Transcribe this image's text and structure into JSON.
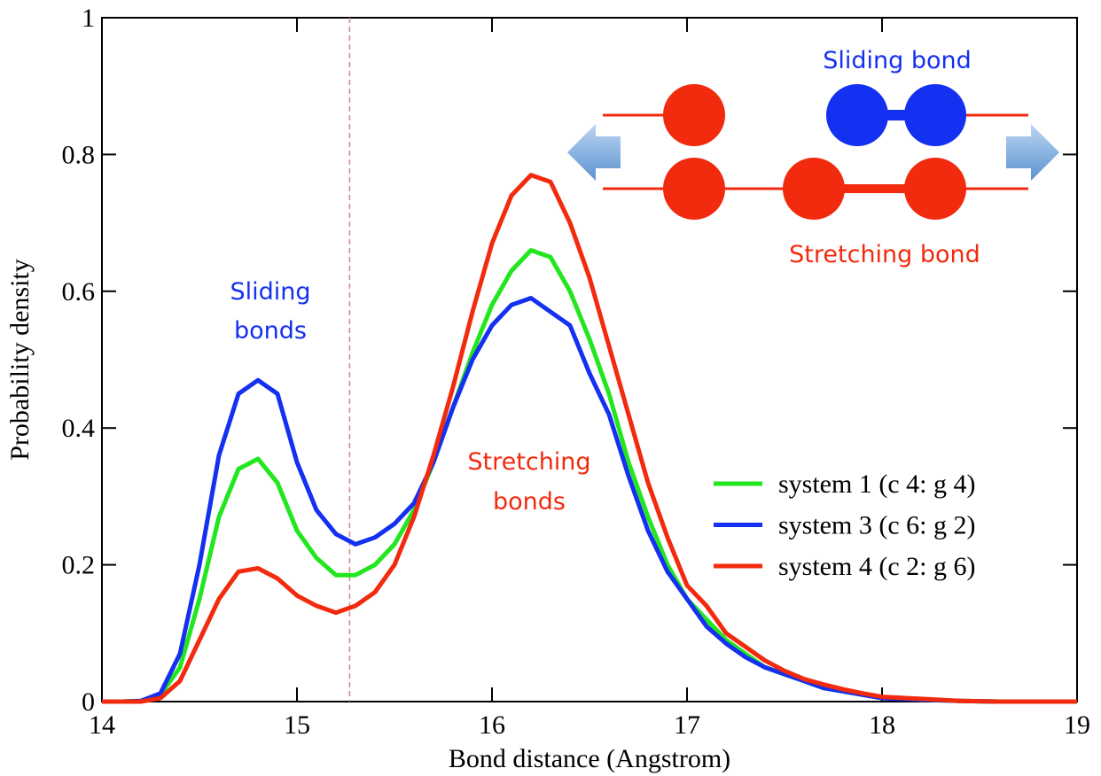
{
  "chart_data": {
    "type": "line",
    "xlabel": "Bond distance (Angstrom)",
    "ylabel": "Probability density",
    "x": [
      14.0,
      14.1,
      14.2,
      14.3,
      14.4,
      14.5,
      14.6,
      14.7,
      14.8,
      14.9,
      15.0,
      15.1,
      15.2,
      15.3,
      15.4,
      15.5,
      15.6,
      15.7,
      15.8,
      15.9,
      16.0,
      16.1,
      16.2,
      16.3,
      16.4,
      16.5,
      16.6,
      16.7,
      16.8,
      16.9,
      17.0,
      17.1,
      17.2,
      17.3,
      17.4,
      17.5,
      17.6,
      17.7,
      17.8,
      17.9,
      18.0,
      18.2,
      18.4,
      18.6,
      18.8,
      19.0
    ],
    "series": [
      {
        "name": "system 1 (c 4: g 4)",
        "color": "#22e61e",
        "values": [
          0,
          0,
          0.001,
          0.01,
          0.05,
          0.15,
          0.27,
          0.34,
          0.355,
          0.32,
          0.25,
          0.21,
          0.185,
          0.185,
          0.2,
          0.23,
          0.28,
          0.35,
          0.43,
          0.51,
          0.58,
          0.63,
          0.66,
          0.65,
          0.6,
          0.53,
          0.45,
          0.35,
          0.27,
          0.2,
          0.15,
          0.12,
          0.09,
          0.07,
          0.05,
          0.04,
          0.03,
          0.02,
          0.015,
          0.01,
          0.006,
          0.003,
          0.001,
          0,
          0,
          0
        ]
      },
      {
        "name": "system 3 (c 6: g 2)",
        "color": "#1430f0",
        "values": [
          0,
          0,
          0.001,
          0.012,
          0.07,
          0.2,
          0.36,
          0.45,
          0.47,
          0.45,
          0.35,
          0.28,
          0.245,
          0.23,
          0.24,
          0.26,
          0.29,
          0.35,
          0.43,
          0.5,
          0.55,
          0.58,
          0.59,
          0.57,
          0.55,
          0.48,
          0.42,
          0.33,
          0.25,
          0.19,
          0.15,
          0.11,
          0.085,
          0.065,
          0.05,
          0.04,
          0.03,
          0.02,
          0.015,
          0.01,
          0.005,
          0.003,
          0.001,
          0,
          0,
          0
        ]
      },
      {
        "name": "system 4 (c 2: g 6)",
        "color": "#f22a0e",
        "values": [
          0,
          0,
          0,
          0.005,
          0.03,
          0.09,
          0.15,
          0.19,
          0.195,
          0.18,
          0.155,
          0.14,
          0.13,
          0.14,
          0.16,
          0.2,
          0.27,
          0.36,
          0.46,
          0.57,
          0.67,
          0.74,
          0.77,
          0.76,
          0.7,
          0.62,
          0.52,
          0.42,
          0.32,
          0.24,
          0.17,
          0.14,
          0.1,
          0.08,
          0.06,
          0.045,
          0.033,
          0.025,
          0.018,
          0.012,
          0.007,
          0.004,
          0.001,
          0,
          0,
          0
        ]
      }
    ],
    "xlim": [
      14,
      19
    ],
    "ylim": [
      0,
      1
    ],
    "xticks": [
      14,
      15,
      16,
      17,
      18,
      19
    ],
    "yticks": [
      0,
      0.2,
      0.4,
      0.6,
      0.8,
      1
    ],
    "vline": 15.27,
    "annotations": {
      "sliding": [
        "Sliding",
        "bonds"
      ],
      "stretching": [
        "Stretching",
        "bonds"
      ]
    },
    "inset": {
      "sliding_label": "Sliding bond",
      "stretching_label": "Stretching bond"
    }
  }
}
